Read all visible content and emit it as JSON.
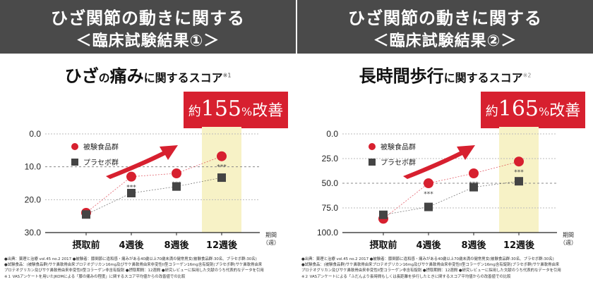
{
  "panels": [
    {
      "header": {
        "line1": "ひざ関節の動きに関する",
        "line2": "＜臨床試験結果①＞"
      },
      "score_title": {
        "part1": "ひざ",
        "part2": "の",
        "part3": "痛み",
        "part4": "に関するスコア",
        "note": "※1"
      },
      "callout": {
        "prefix": "約",
        "number": "155",
        "percent": "%",
        "suffix": "改善"
      },
      "footnotes": [
        "●出典：薬理と治療 vol.45 no.2 2017 ●被験者：膝関節に違和感・痛みがある40歳以上70歳未満の健常男女(被験食品群:30名、プラセボ群:30名)",
        "●試験食品：(被験食品群)サケ鼻軟骨由来プロテオグリカン16mg及びサケ鼻軟骨由来非変性II型コラーゲン16mg含有錠剤(プラセボ群)サケ鼻軟骨由来",
        "プロテオグリカン及びサケ鼻軟骨由来非変性II型コラーゲン非含有錠剤 ●摂取期間：12週間 ●研究レビューに採用した文献のうち代表的なデータを引用",
        "※１ VASアンケートを用いたJKOMによる「膝の痛みの程度」に関するスコア平均値からの改善値での比較"
      ],
      "chart_data": {
        "type": "line",
        "categories": [
          "摂取前",
          "4週後",
          "8週後",
          "12週後"
        ],
        "xlabel": "期間\n（週）",
        "ylim": [
          30,
          0
        ],
        "y_ticks": [
          "0.0",
          "10.0",
          "20.0",
          "30.0"
        ],
        "y_tick_values": [
          0,
          10,
          20,
          30
        ],
        "dashed_gridlines": [
          10
        ],
        "significance": "***",
        "series": [
          {
            "name": "被験食品群",
            "values": [
              24.0,
              13.0,
              12.0,
              6.8
            ],
            "color": "#d7202f",
            "marker": "circle"
          },
          {
            "name": "プラセボ群",
            "values": [
              24.5,
              18.0,
              16.0,
              13.3
            ],
            "color": "#444444",
            "marker": "square"
          }
        ]
      }
    },
    {
      "header": {
        "line1": "ひざ関節の動きに関する",
        "line2": "＜臨床試験結果②＞"
      },
      "score_title": {
        "part1": "長時間歩行",
        "part2": "",
        "part3": "",
        "part4": "に関するスコア",
        "note": "※2"
      },
      "callout": {
        "prefix": "約",
        "number": "165",
        "percent": "%",
        "suffix": "改善"
      },
      "footnotes": [
        "●出典：薬理と治療 vol.45 no.2 2017 ●被験者：膝関節に違和感・痛みがある40歳以上70歳未満の健常男女(被験食品群:30名、プラセボ群:30名)",
        "●試験食品：(被験食品群)サケ鼻軟骨由来プロテオグリカン16mg及びサケ鼻軟骨由来非変性II型コラーゲン16mg含有錠剤(プラセボ群)サケ鼻軟骨由来",
        "プロテオグリカン及びサケ鼻軟骨由来非変性II型コラーゲン非含有錠剤 ●摂取期間：12週間 ●研究レビューに採用した文献のうち代表的なデータを引用",
        "※２ VASアンケートによる「ふだんより長時間もしくは長距離を歩行したときに関するスコア平均値からの改善値での比較"
      ],
      "chart_data": {
        "type": "line",
        "categories": [
          "摂取前",
          "4週後",
          "8週後",
          "12週後"
        ],
        "xlabel": "期間\n（週）",
        "ylim": [
          100,
          0
        ],
        "y_ticks": [
          "0.0",
          "25.0",
          "50.0",
          "75.0",
          "100.0"
        ],
        "y_tick_values": [
          0,
          25,
          50,
          75,
          100
        ],
        "dashed_gridlines": [
          50
        ],
        "significance": "***",
        "series": [
          {
            "name": "被験食品群",
            "values": [
              86.0,
              50.0,
              40.0,
              28.0
            ],
            "color": "#d7202f",
            "marker": "circle"
          },
          {
            "name": "プラセボ群",
            "values": [
              82.0,
              74.0,
              54.0,
              48.0
            ],
            "color": "#444444",
            "marker": "square"
          }
        ]
      }
    }
  ],
  "colors": {
    "header_bg": "#4a4a4a",
    "accent_red": "#d7202f",
    "highlight_band": "#f7f2c6",
    "gridline": "#bbbbbb"
  }
}
